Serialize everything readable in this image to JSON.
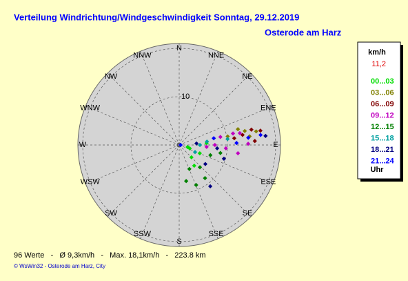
{
  "chart_data": {
    "type": "polar_scatter",
    "title": "Verteilung Windrichtung/Windgeschwindigkeit  Sonntag, 29.12.2019",
    "subtitle": "Osterode am Harz",
    "directions": [
      "N",
      "NNE",
      "NE",
      "ENE",
      "E",
      "ESE",
      "SE",
      "SSE",
      "S",
      "SSW",
      "SW",
      "WSW",
      "W",
      "WNW",
      "NW",
      "NNW"
    ],
    "rlim": [
      0,
      21
    ],
    "rticks": [
      {
        "value": 10,
        "label": "10"
      }
    ],
    "rgrid": [
      10,
      20
    ],
    "legend_title": "km/h",
    "legend_value": "11,2",
    "legend_footer": "Uhr",
    "series": [
      {
        "name": "00...03",
        "color": "#00dd00",
        "theta": [
          104,
          108,
          135,
          112,
          144,
          86
        ],
        "r": [
          1.8,
          2.3,
          3.6,
          4.6,
          5.3,
          5.7
        ]
      },
      {
        "name": "03...06",
        "color": "#808000",
        "theta": [
          75,
          78,
          80,
          83,
          80
        ],
        "r": [
          12.6,
          13.9,
          16.2,
          14.7,
          10.2
        ]
      },
      {
        "name": "06...09",
        "color": "#800000",
        "theta": [
          78,
          80,
          81,
          83,
          87
        ],
        "r": [
          15.3,
          17.1,
          13.3,
          11.5,
          15.7
        ]
      },
      {
        "name": "09...12",
        "color": "#c000c0",
        "theta": [
          78,
          79,
          79,
          89,
          90,
          94,
          98,
          94
        ],
        "r": [
          11.4,
          12.8,
          8.7,
          14.3,
          7.4,
          9.7,
          12.3,
          5.7
        ]
      },
      {
        "name": "12...15",
        "color": "#008000",
        "theta": [
          169,
          157,
          142,
          137,
          157,
          108,
          101
        ],
        "r": [
          7.6,
          9.0,
          8.7,
          6.3,
          5.4,
          6.8,
          8.7
        ]
      },
      {
        "name": "15...18",
        "color": "#00a0a0",
        "theta": [
          90,
          83,
          83,
          114
        ],
        "r": [
          4.3,
          5.8,
          10.1,
          3.6
        ]
      },
      {
        "name": "18...21",
        "color": "#000080",
        "theta": [
          143,
          107,
          84,
          126,
          85,
          95
        ],
        "r": [
          10.7,
          9.7,
          18.0,
          6.7,
          3.6,
          7.9
        ]
      },
      {
        "name": "21...24",
        "color": "#0000ff",
        "theta": [
          84,
          88,
          83,
          79,
          90
        ],
        "r": [
          14.4,
          11.9,
          17.0,
          7.3,
          0.3
        ]
      }
    ]
  },
  "footer": {
    "stats": "96 Werte   -   Ø 9,3km/h   -   Max. 18,1km/h   -   223.8 km",
    "credit": "© WsWin32  -  Osterode am Harz, City"
  }
}
